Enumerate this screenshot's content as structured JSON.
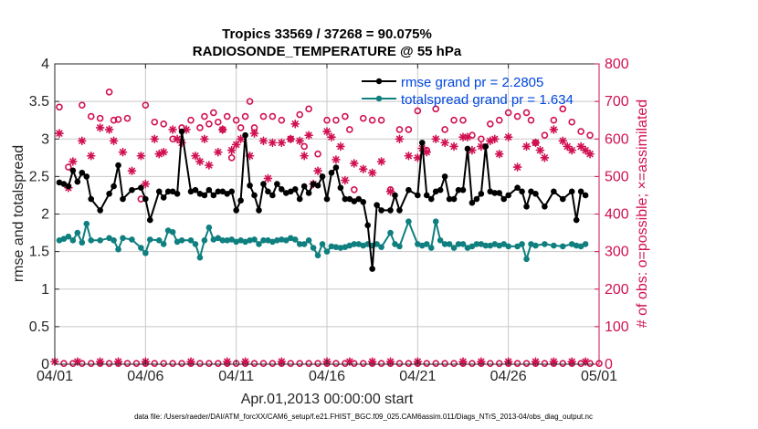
{
  "chart_data": {
    "type": "line",
    "title": "Tropics 33569 / 37268 = 90.075%",
    "subtitle": "RADIOSONDE_TEMPERATURE @ 55 hPa",
    "xlabel": "Apr.01,2013 00:00:00 start",
    "ylabel": "rmse and totalspread",
    "y2label": "# of obs: o=possible; ×=assimilated",
    "footnote": "data file: /Users/raeder/DAI/ATM_forcXX/CAM6_setup/f.e21.FHIST_BGC.f09_025.CAM6assim.011/Diags_NTrS_2013-04/obs_diag_output.nc",
    "xlim": [
      0,
      30
    ],
    "ylim": [
      0,
      4
    ],
    "y2lim": [
      0,
      800
    ],
    "x_tick_values": [
      0,
      5,
      10,
      15,
      20,
      25,
      30
    ],
    "x_tick_labels": [
      "04/01",
      "04/06",
      "04/11",
      "04/16",
      "04/21",
      "04/26",
      "05/01"
    ],
    "y_ticks": [
      "0",
      "0.5",
      "1",
      "1.5",
      "2",
      "2.5",
      "3",
      "3.5",
      "4"
    ],
    "y2_ticks": [
      "0",
      "100",
      "200",
      "300",
      "400",
      "500",
      "600",
      "700",
      "800"
    ],
    "colors": {
      "rmse": "#000000",
      "spread": "#0f7f7f",
      "obs": "#d11052",
      "legend_text": "#0047e0"
    },
    "series": [
      {
        "name": "rmse grand pr = 2.2805",
        "axis": "left",
        "x": [
          0.25,
          0.5,
          0.75,
          1,
          1.25,
          1.5,
          1.75,
          2,
          2.5,
          3,
          3.25,
          3.5,
          3.75,
          4.25,
          4.75,
          5,
          5.25,
          5.75,
          6,
          6.25,
          6.5,
          6.75,
          7,
          7.5,
          7.75,
          8,
          8.25,
          8.5,
          8.75,
          9,
          9.25,
          9.5,
          9.75,
          10,
          10.25,
          10.5,
          10.75,
          11,
          11.25,
          11.5,
          11.75,
          12,
          12.25,
          12.5,
          12.75,
          13,
          13.25,
          13.5,
          13.75,
          14,
          14.25,
          14.5,
          14.75,
          15,
          15.25,
          15.5,
          15.75,
          16,
          16.25,
          16.5,
          16.75,
          17,
          17.25,
          17.5,
          17.75,
          18,
          18.5,
          18.75,
          19,
          19.5,
          20,
          20.25,
          20.5,
          20.75,
          21,
          21.25,
          21.5,
          21.75,
          22,
          22.25,
          22.5,
          22.75,
          23,
          23.25,
          23.5,
          23.75,
          24,
          24.25,
          24.5,
          24.75,
          25,
          25.5,
          25.75,
          26,
          26.25,
          26.5,
          27,
          27.5,
          28,
          28.5,
          28.75,
          29,
          29.25
        ],
        "y": [
          2.42,
          2.4,
          2.37,
          2.58,
          2.43,
          2.55,
          2.5,
          2.2,
          2.05,
          2.27,
          2.37,
          2.65,
          2.2,
          2.32,
          2.35,
          2.2,
          1.92,
          2.3,
          2.22,
          2.3,
          2.3,
          2.27,
          3.1,
          2.3,
          2.32,
          2.27,
          2.25,
          2.32,
          2.25,
          2.3,
          2.3,
          2.27,
          2.3,
          2.05,
          2.18,
          3.05,
          2.38,
          2.25,
          2.05,
          2.4,
          2.3,
          2.25,
          2.4,
          2.33,
          2.28,
          2.3,
          2.33,
          2.2,
          2.37,
          2.28,
          2.4,
          2.38,
          2.5,
          2.2,
          2.55,
          2.62,
          2.35,
          2.2,
          2.2,
          2.17,
          2.2,
          2.16,
          1.85,
          1.27,
          2.12,
          2.05,
          2.05,
          2.25,
          2.05,
          2.32,
          2.25,
          2.95,
          2.25,
          2.2,
          2.3,
          2.32,
          2.5,
          2.2,
          2.2,
          2.32,
          2.32,
          2.87,
          2.15,
          2.2,
          2.27,
          2.9,
          2.3,
          2.28,
          2.28,
          2.2,
          2.25,
          2.35,
          2.3,
          2.1,
          2.3,
          2.27,
          2.1,
          2.3,
          2.2,
          2.3,
          1.92,
          2.3,
          2.25
        ]
      },
      {
        "name": "totalspread grand pr = 1.634",
        "axis": "left",
        "x": [
          0.25,
          0.5,
          0.75,
          1,
          1.25,
          1.5,
          1.75,
          2,
          2.5,
          3,
          3.25,
          3.5,
          3.75,
          4.25,
          4.75,
          5,
          5.25,
          5.75,
          6,
          6.25,
          6.5,
          6.75,
          7,
          7.5,
          7.75,
          8,
          8.25,
          8.5,
          8.75,
          9,
          9.25,
          9.5,
          9.75,
          10,
          10.25,
          10.5,
          10.75,
          11,
          11.25,
          11.5,
          11.75,
          12,
          12.25,
          12.5,
          12.75,
          13,
          13.25,
          13.5,
          13.75,
          14,
          14.25,
          14.5,
          14.75,
          15,
          15.25,
          15.5,
          15.75,
          16,
          16.25,
          16.5,
          16.75,
          17,
          17.25,
          17.5,
          17.75,
          18,
          18.5,
          18.75,
          19,
          19.5,
          20,
          20.25,
          20.5,
          20.75,
          21,
          21.25,
          21.5,
          21.75,
          22,
          22.25,
          22.5,
          22.75,
          23,
          23.25,
          23.5,
          23.75,
          24,
          24.25,
          24.5,
          24.75,
          25,
          25.5,
          25.75,
          26,
          26.25,
          26.5,
          27,
          27.5,
          28,
          28.5,
          28.75,
          29,
          29.25
        ],
        "y": [
          1.65,
          1.67,
          1.7,
          1.65,
          1.75,
          1.62,
          1.87,
          1.65,
          1.65,
          1.68,
          1.65,
          1.53,
          1.68,
          1.66,
          1.55,
          1.48,
          1.66,
          1.65,
          1.6,
          1.78,
          1.76,
          1.63,
          1.65,
          1.65,
          1.6,
          1.42,
          1.65,
          1.82,
          1.66,
          1.68,
          1.65,
          1.65,
          1.66,
          1.63,
          1.65,
          1.63,
          1.65,
          1.66,
          1.6,
          1.65,
          1.65,
          1.63,
          1.65,
          1.66,
          1.65,
          1.68,
          1.66,
          1.6,
          1.6,
          1.65,
          1.55,
          1.45,
          1.6,
          1.5,
          1.57,
          1.56,
          1.55,
          1.56,
          1.58,
          1.6,
          1.6,
          1.58,
          1.6,
          1.58,
          1.6,
          1.56,
          1.75,
          1.6,
          1.57,
          1.9,
          1.6,
          1.58,
          1.6,
          1.55,
          1.9,
          1.65,
          1.6,
          1.6,
          1.55,
          1.6,
          1.6,
          1.55,
          1.57,
          1.6,
          1.6,
          1.58,
          1.58,
          1.6,
          1.58,
          1.6,
          1.57,
          1.57,
          1.6,
          1.4,
          1.6,
          1.58,
          1.6,
          1.58,
          1.57,
          1.6,
          1.58,
          1.57,
          1.6
        ]
      },
      {
        "name": "possible",
        "axis": "right",
        "marker": "circle",
        "x": [
          0.25,
          0.75,
          1.5,
          2,
          2.5,
          3,
          3.25,
          3.5,
          4,
          4.75,
          5,
          5.5,
          6,
          6.5,
          7,
          7.5,
          8,
          8.25,
          8.5,
          8.75,
          9,
          9.25,
          9.5,
          9.75,
          10,
          10.25,
          10.5,
          10.75,
          11,
          11.5,
          12,
          12.5,
          13,
          13.5,
          13.75,
          14,
          14.5,
          15,
          15.5,
          16,
          16.25,
          16.5,
          17,
          17.5,
          18,
          18.5,
          19,
          19.5,
          20,
          20.5,
          21,
          21.5,
          22,
          22.5,
          23,
          23.5,
          24,
          24.5,
          25,
          25.5,
          26,
          26.25,
          26.5,
          27,
          27.5,
          28,
          28.5,
          29,
          29.5
        ],
        "y": [
          685,
          525,
          690,
          660,
          655,
          725,
          650,
          652,
          655,
          440,
          690,
          645,
          640,
          600,
          630,
          650,
          630,
          660,
          640,
          670,
          645,
          625,
          660,
          550,
          650,
          630,
          660,
          700,
          630,
          660,
          660,
          650,
          600,
          665,
          580,
          680,
          560,
          650,
          650,
          660,
          625,
          465,
          655,
          650,
          650,
          465,
          625,
          625,
          675,
          570,
          680,
          625,
          650,
          650,
          610,
          600,
          640,
          650,
          670,
          660,
          670,
          650,
          590,
          610,
          650,
          680,
          645,
          620,
          610
        ]
      },
      {
        "name": "assimilated",
        "axis": "right",
        "marker": "star",
        "x": [
          0.25,
          0.75,
          1,
          1.5,
          2,
          2.5,
          3,
          3.25,
          3.75,
          4.25,
          4.75,
          5,
          5.5,
          5.75,
          6,
          6.5,
          6.75,
          7,
          7.25,
          7.75,
          8,
          8.25,
          8.5,
          9,
          9.25,
          9.75,
          10,
          10.25,
          10.75,
          11,
          11.5,
          11.75,
          12,
          12.5,
          13,
          13.25,
          13.5,
          13.75,
          14,
          14.25,
          14.5,
          15,
          15.25,
          15.5,
          15.75,
          16,
          16.5,
          17,
          17.5,
          18,
          18.5,
          19,
          19.5,
          20,
          20.25,
          20.5,
          21,
          21.5,
          22,
          22.5,
          22.75,
          23,
          23.5,
          24,
          24.25,
          24.5,
          25,
          25.5,
          26,
          26.5,
          26.75,
          27,
          27.5,
          28,
          28.25,
          28.5,
          29,
          29.25,
          29.5
        ],
        "y": [
          615,
          470,
          540,
          595,
          555,
          630,
          625,
          595,
          565,
          515,
          555,
          480,
          600,
          560,
          565,
          625,
          600,
          590,
          625,
          555,
          540,
          600,
          530,
          565,
          625,
          570,
          585,
          600,
          555,
          615,
          595,
          495,
          590,
          590,
          600,
          640,
          595,
          555,
          610,
          480,
          515,
          620,
          605,
          545,
          580,
          490,
          535,
          520,
          510,
          540,
          460,
          600,
          555,
          550,
          575,
          565,
          600,
          590,
          580,
          605,
          605,
          570,
          580,
          595,
          600,
          560,
          605,
          525,
          580,
          590,
          570,
          550,
          625,
          595,
          580,
          570,
          580,
          570,
          560
        ]
      }
    ],
    "possible_bottom_x": [
      0.5,
      1,
      1.5,
      2,
      2.5,
      3,
      3.5,
      4,
      4.5,
      5,
      5.5,
      6,
      6.5,
      7,
      7.5,
      8,
      8.5,
      9,
      9.5,
      10,
      10.5,
      11,
      11.5,
      12,
      12.5,
      13,
      13.5,
      14,
      14.5,
      15,
      15.5,
      16,
      16.5,
      17,
      17.5,
      18,
      18.5,
      19,
      19.5,
      20,
      20.5,
      21,
      21.5,
      22,
      22.5,
      23,
      23.5,
      24,
      24.5,
      25,
      25.5,
      26,
      26.5,
      27,
      27.5,
      28,
      28.5,
      29,
      29.5,
      30
    ],
    "possible_bottom_y": 2,
    "assimilated_bottom_x": [
      0,
      1.25,
      2.5,
      3.5,
      5,
      7.5,
      9.5,
      10.5,
      12.5,
      15,
      16.25,
      17.5,
      18.5,
      20,
      22.5,
      23.5,
      25,
      26.5,
      27.5,
      28.5,
      29.25
    ],
    "assimilated_bottom_y": 7,
    "legend_position": "top-right"
  }
}
